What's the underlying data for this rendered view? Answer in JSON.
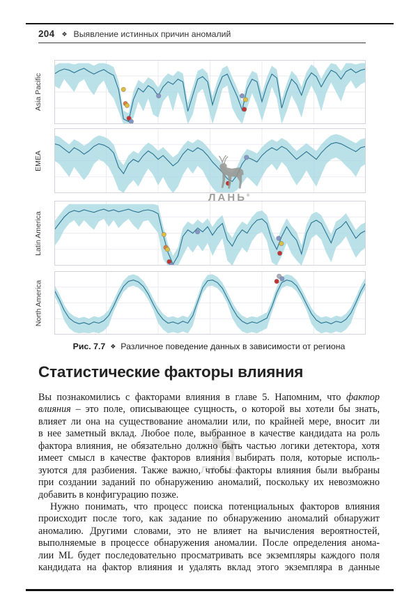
{
  "page": {
    "header": {
      "page_number": "204",
      "diamond": "❖",
      "title": "Выявление истинных причин аномалий"
    }
  },
  "figure": {
    "caption": {
      "label": "Рис. 7.7",
      "diamond": "❖",
      "text": "Различное поведение данных в зависимости от региона"
    },
    "watermark": {
      "text": "ЛАНЬ",
      "reg": "®"
    },
    "colors": {
      "band": "#a9d9e2",
      "line": "#2a7391",
      "grid": "#ebebf2",
      "border": "#d3d3dc",
      "marker_yellow": "#e0bd3e",
      "marker_red": "#c23434",
      "marker_orange": "#de7e38",
      "marker_blue": "#8496c8",
      "marker_gray": "#a8b0ba",
      "marker_stroke": "#6b6b6b"
    },
    "charts": [
      {
        "label": "Asia Pacific",
        "hi_off": 13,
        "line": [
          78,
          83,
          86,
          84,
          80,
          84,
          87,
          82,
          78,
          82,
          85,
          80,
          76,
          54,
          8,
          4,
          38,
          56,
          50,
          60,
          55,
          44,
          58,
          66,
          62,
          70,
          66,
          20,
          45,
          70,
          74,
          66,
          30,
          55,
          74,
          78,
          60,
          43,
          22,
          55,
          70,
          66,
          35,
          60,
          78,
          72,
          25,
          50,
          70,
          62,
          45,
          68,
          80,
          74,
          58,
          72,
          84,
          80,
          70,
          82,
          86,
          80,
          84,
          86
        ],
        "lo": [
          60,
          55,
          70,
          60,
          50,
          65,
          70,
          55,
          45,
          60,
          68,
          50,
          40,
          20,
          0,
          0,
          10,
          35,
          20,
          40,
          15,
          10,
          35,
          45,
          20,
          50,
          30,
          0,
          15,
          48,
          55,
          30,
          0,
          25,
          55,
          60,
          25,
          10,
          0,
          25,
          48,
          30,
          5,
          30,
          58,
          40,
          0,
          20,
          45,
          30,
          10,
          42,
          60,
          45,
          20,
          48,
          65,
          50,
          35,
          58,
          68,
          55,
          62,
          66
        ],
        "markers": [
          {
            "x": 0.222,
            "v": 54,
            "c": "yellow"
          },
          {
            "x": 0.2285,
            "v": 32,
            "c": "orange"
          },
          {
            "x": 0.2335,
            "v": 29,
            "c": "yellow"
          },
          {
            "x": 0.2395,
            "v": 9,
            "c": "red"
          },
          {
            "x": 0.247,
            "v": 4,
            "c": "blue"
          },
          {
            "x": 0.335,
            "v": 44,
            "c": "blue"
          },
          {
            "x": 0.603,
            "v": 44,
            "c": "blue"
          },
          {
            "x": 0.614,
            "v": 38,
            "c": "yellow"
          },
          {
            "x": 0.61,
            "v": 23,
            "c": "red"
          }
        ]
      },
      {
        "label": "EMEA",
        "hi_off": 13,
        "line": [
          76,
          74,
          68,
          62,
          70,
          66,
          60,
          65,
          72,
          76,
          74,
          70,
          62,
          40,
          30,
          45,
          52,
          48,
          58,
          65,
          60,
          52,
          58,
          50,
          42,
          48,
          60,
          68,
          64,
          70,
          66,
          58,
          48,
          40,
          32,
          22,
          18,
          28,
          45,
          55,
          52,
          48,
          58,
          65,
          70,
          66,
          72,
          68,
          60,
          52,
          58,
          64,
          58,
          52,
          62,
          70,
          76,
          78,
          76,
          72,
          68,
          64,
          70,
          72
        ],
        "lo": [
          50,
          45,
          35,
          25,
          40,
          30,
          20,
          30,
          45,
          52,
          48,
          40,
          25,
          5,
          0,
          12,
          20,
          10,
          25,
          38,
          28,
          12,
          25,
          10,
          0,
          10,
          28,
          40,
          30,
          42,
          35,
          20,
          8,
          0,
          0,
          0,
          0,
          5,
          15,
          25,
          18,
          10,
          25,
          38,
          45,
          35,
          48,
          40,
          25,
          12,
          22,
          35,
          22,
          10,
          28,
          45,
          52,
          55,
          50,
          42,
          35,
          25,
          40,
          45
        ],
        "markers": [
          {
            "x": 0.558,
            "v": 15,
            "c": "red"
          },
          {
            "x": 0.617,
            "v": 55,
            "c": "blue"
          }
        ]
      },
      {
        "label": "Latin America",
        "hi_off": 13,
        "line": [
          55,
          65,
          75,
          82,
          85,
          83,
          86,
          84,
          82,
          85,
          87,
          84,
          86,
          83,
          85,
          87,
          84,
          82,
          85,
          86,
          84,
          80,
          48,
          20,
          2,
          15,
          45,
          55,
          50,
          58,
          52,
          60,
          47,
          58,
          65,
          40,
          30,
          45,
          55,
          50,
          62,
          70,
          72,
          65,
          40,
          25,
          45,
          60,
          48,
          39,
          18,
          50,
          66,
          70,
          65,
          50,
          35,
          55,
          60,
          68,
          55,
          42,
          50,
          54
        ],
        "lo": [
          30,
          40,
          55,
          65,
          70,
          60,
          70,
          62,
          55,
          68,
          72,
          60,
          70,
          58,
          66,
          72,
          62,
          55,
          68,
          70,
          60,
          50,
          10,
          0,
          0,
          0,
          15,
          30,
          20,
          32,
          22,
          35,
          15,
          30,
          42,
          8,
          0,
          15,
          28,
          20,
          38,
          48,
          52,
          38,
          5,
          0,
          15,
          35,
          18,
          8,
          0,
          20,
          42,
          48,
          40,
          20,
          5,
          28,
          35,
          45,
          28,
          12,
          22,
          28
        ],
        "markers": [
          {
            "x": 0.352,
            "v": 48,
            "c": "yellow"
          },
          {
            "x": 0.358,
            "v": 28,
            "c": "orange"
          },
          {
            "x": 0.363,
            "v": 25,
            "c": "yellow"
          },
          {
            "x": 0.369,
            "v": 6,
            "c": "red"
          },
          {
            "x": 0.376,
            "v": 1,
            "c": "blue"
          },
          {
            "x": 0.46,
            "v": 52,
            "c": "blue"
          },
          {
            "x": 0.72,
            "v": 42,
            "c": "blue"
          },
          {
            "x": 0.729,
            "v": 34,
            "c": "yellow"
          },
          {
            "x": 0.724,
            "v": 19,
            "c": "red"
          }
        ]
      },
      {
        "label": "North America",
        "hi_off": 9,
        "line": [
          70,
          55,
          38,
          26,
          20,
          17,
          19,
          16,
          20,
          18,
          22,
          30,
          45,
          62,
          76,
          84,
          86,
          83,
          76,
          64,
          48,
          34,
          24,
          18,
          20,
          17,
          21,
          18,
          30,
          52,
          74,
          85,
          86,
          82,
          73,
          58,
          42,
          29,
          21,
          17,
          20,
          18,
          22,
          26,
          44,
          66,
          82,
          86,
          84,
          77,
          64,
          48,
          33,
          23,
          18,
          20,
          17,
          21,
          19,
          24,
          34,
          50,
          68,
          82
        ],
        "lo": [
          61,
          46,
          22,
          10,
          4,
          2,
          3,
          2,
          4,
          2,
          6,
          14,
          36,
          53,
          67,
          75,
          77,
          74,
          67,
          55,
          39,
          18,
          8,
          2,
          4,
          2,
          5,
          2,
          14,
          43,
          65,
          76,
          77,
          73,
          64,
          49,
          26,
          13,
          5,
          2,
          4,
          2,
          6,
          10,
          35,
          57,
          73,
          77,
          75,
          68,
          55,
          39,
          17,
          7,
          2,
          4,
          2,
          5,
          3,
          8,
          18,
          41,
          59,
          73
        ],
        "markers": [
          {
            "x": 0.714,
            "v": 84,
            "c": "red"
          },
          {
            "x": 0.722,
            "v": 92,
            "c": "gray"
          },
          {
            "x": 0.731,
            "v": 88,
            "c": "blue"
          }
        ]
      }
    ]
  },
  "section_title": "Статистические факторы влияния",
  "body": {
    "paragraphs": [
      {
        "indent": false,
        "last_justified": false,
        "lines": [
          [
            {
              "t": "Вы познакомились с факторами влияния в главе 5. Напомним, что "
            },
            {
              "t": "фактор",
              "i": true
            }
          ],
          [
            {
              "t": "влияния",
              "i": true
            },
            {
              "t": " – это поле, описывающее сущность, о которой вы хотели бы знать,"
            }
          ],
          [
            {
              "t": "влияет ли она на существование аномалии или, по крайней мере, вносит ли"
            }
          ],
          [
            {
              "t": "в нее заметный вклад. Любое поле, выбранное в качестве кандидата на роль"
            }
          ],
          [
            {
              "t": "фактора влияния, не обязательно должно быть частью логики детектора, хотя"
            }
          ],
          [
            {
              "t": "имеет смысл в качестве факторов влияния выбирать поля, которые исполь-"
            }
          ],
          [
            {
              "t": "зуются для разбиения. Также важно, чтобы факторы влияния были выбраны"
            }
          ],
          [
            {
              "t": "при создании заданий по обнаружению аномалий, поскольку их невозможно"
            }
          ],
          [
            {
              "t": "добавить в конфигурацию позже."
            }
          ]
        ]
      },
      {
        "indent": true,
        "last_justified": true,
        "lines": [
          [
            {
              "t": "Нужно понимать, что процесс поиска потенциальных факторов влияния"
            }
          ],
          [
            {
              "t": "происходит после того, как задание по обнаружению аномалий обнаружит"
            }
          ],
          [
            {
              "t": "аномалию. Другими словами, это не влияет на вычисления вероятностей,"
            }
          ],
          [
            {
              "t": "выполняемые в процессе обнаружения аномалии. После определения анома-"
            }
          ],
          [
            {
              "t": "лии ML будет последовательно просматривать все экземпляры каждого поля"
            }
          ],
          [
            {
              "t": "кандидата на фактор влияния и удалять вклад этого экземпляра в данные"
            }
          ]
        ]
      }
    ]
  }
}
